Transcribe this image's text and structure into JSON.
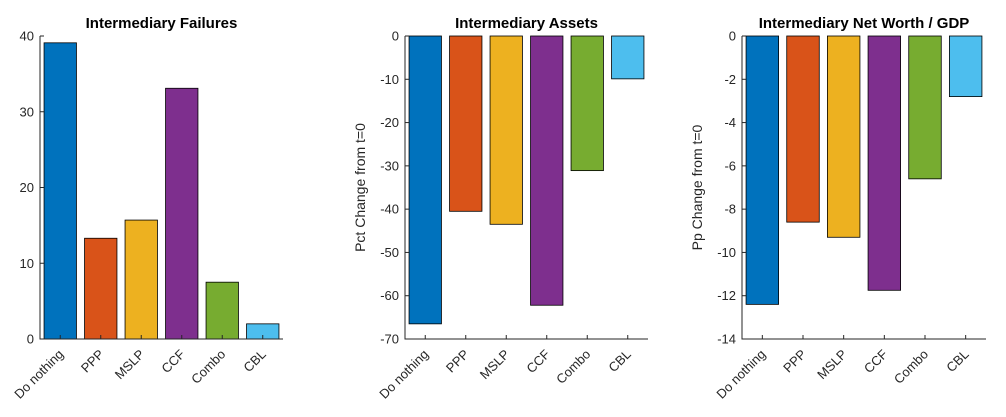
{
  "chart_data": [
    {
      "type": "bar",
      "title": "Intermediary Failures",
      "ylabel": "",
      "categories": [
        "Do nothing",
        "PPP",
        "MSLP",
        "CCF",
        "Combo",
        "CBL"
      ],
      "values": [
        39.1,
        13.3,
        15.7,
        33.1,
        7.5,
        2.0
      ],
      "ylim": [
        0,
        40
      ],
      "yticks": [
        "0",
        "10",
        "20",
        "30",
        "40"
      ],
      "colors": [
        "#0072BD",
        "#D95319",
        "#EDB120",
        "#7E2F8E",
        "#77AC30",
        "#4DBEEE"
      ],
      "grid": false
    },
    {
      "type": "bar",
      "title": "Intermediary Assets",
      "ylabel": "Pct Change from t=0",
      "categories": [
        "Do nothing",
        "PPP",
        "MSLP",
        "CCF",
        "Combo",
        "CBL"
      ],
      "values": [
        -66.5,
        -40.5,
        -43.5,
        -62.2,
        -31.1,
        -9.9
      ],
      "ylim": [
        -70,
        0
      ],
      "yticks": [
        "-70",
        "-60",
        "-50",
        "-40",
        "-30",
        "-20",
        "-10",
        "0"
      ],
      "colors": [
        "#0072BD",
        "#D95319",
        "#EDB120",
        "#7E2F8E",
        "#77AC30",
        "#4DBEEE"
      ],
      "grid": false
    },
    {
      "type": "bar",
      "title": "Intermediary Net Worth / GDP",
      "ylabel": "Pp Change from t=0",
      "categories": [
        "Do nothing",
        "PPP",
        "MSLP",
        "CCF",
        "Combo",
        "CBL"
      ],
      "values": [
        -12.4,
        -8.6,
        -9.3,
        -11.75,
        -6.6,
        -2.8
      ],
      "ylim": [
        -14,
        0
      ],
      "yticks": [
        "-14",
        "-12",
        "-10",
        "-8",
        "-6",
        "-4",
        "-2",
        "0"
      ],
      "colors": [
        "#0072BD",
        "#D95319",
        "#EDB120",
        "#7E2F8E",
        "#77AC30",
        "#4DBEEE"
      ],
      "grid": false
    }
  ]
}
